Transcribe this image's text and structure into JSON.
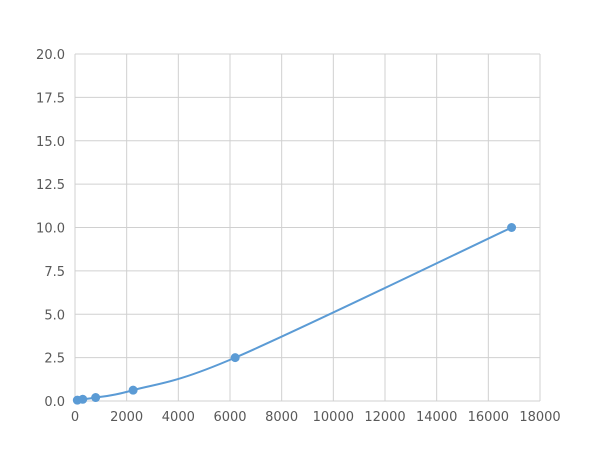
{
  "chart_data": {
    "type": "scatter",
    "title": "",
    "xlabel": "",
    "ylabel": "",
    "xlim": [
      0,
      18000
    ],
    "ylim": [
      0,
      20
    ],
    "xticks": [
      "0",
      "2000",
      "4000",
      "6000",
      "8000",
      "10000",
      "12000",
      "14000",
      "16000",
      "18000"
    ],
    "yticks": [
      "0.0",
      "2.5",
      "5.0",
      "7.5",
      "10.0",
      "12.5",
      "15.0",
      "17.5",
      "20.0"
    ],
    "grid": true,
    "smooth_line": true,
    "color": "#5b9bd5",
    "series": [
      {
        "x": [
          90,
          300,
          800,
          2250,
          6200,
          16900
        ],
        "y": [
          0.05,
          0.1,
          0.2,
          0.625,
          2.5,
          10.0
        ]
      }
    ]
  }
}
